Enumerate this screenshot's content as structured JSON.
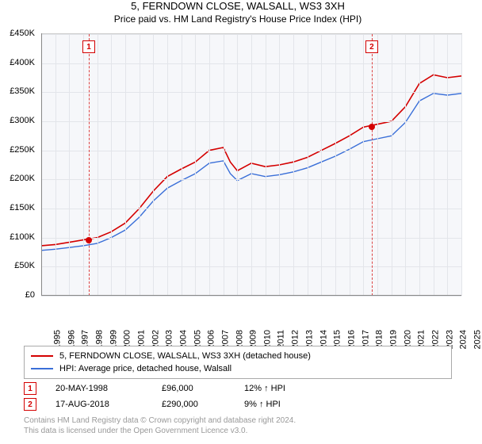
{
  "title": "5, FERNDOWN CLOSE, WALSALL, WS3 3XH",
  "subtitle": "Price paid vs. HM Land Registry's House Price Index (HPI)",
  "chart": {
    "type": "line",
    "background_color": "#f6f7fa",
    "grid_color": "#e3e5ea",
    "axis_color": "#888888",
    "xlim": [
      1995,
      2025
    ],
    "ylim": [
      0,
      450000
    ],
    "ytick_step": 50000,
    "yticks": [
      0,
      50000,
      100000,
      150000,
      200000,
      250000,
      300000,
      350000,
      400000,
      450000
    ],
    "ytick_labels": [
      "£0",
      "£50K",
      "£100K",
      "£150K",
      "£200K",
      "£250K",
      "£300K",
      "£350K",
      "£400K",
      "£450K"
    ],
    "ytick_fontsize": 11,
    "xticks": [
      1995,
      1996,
      1997,
      1998,
      1999,
      2000,
      2001,
      2002,
      2003,
      2004,
      2005,
      2006,
      2007,
      2008,
      2009,
      2010,
      2011,
      2012,
      2013,
      2014,
      2015,
      2016,
      2017,
      2018,
      2019,
      2020,
      2021,
      2022,
      2023,
      2024,
      2025
    ],
    "xtick_fontsize": 11,
    "series": [
      {
        "name": "5, FERNDOWN CLOSE, WALSALL, WS3 3XH (detached house)",
        "color": "#d40000",
        "line_width": 1.6,
        "x": [
          1995,
          1996,
          1997,
          1998,
          1999,
          2000,
          2001,
          2002,
          2003,
          2004,
          2005,
          2006,
          2007,
          2008,
          2008.5,
          2009,
          2010,
          2011,
          2012,
          2013,
          2014,
          2015,
          2016,
          2017,
          2018,
          2019,
          2020,
          2021,
          2022,
          2023,
          2024,
          2025
        ],
        "y": [
          86000,
          88000,
          92000,
          96000,
          100000,
          110000,
          125000,
          150000,
          180000,
          205000,
          218000,
          230000,
          250000,
          255000,
          230000,
          215000,
          228000,
          222000,
          225000,
          230000,
          238000,
          250000,
          262000,
          275000,
          290000,
          295000,
          300000,
          325000,
          365000,
          380000,
          375000,
          378000
        ]
      },
      {
        "name": "HPI: Average price, detached house, Walsall",
        "color": "#3a6fd8",
        "line_width": 1.4,
        "x": [
          1995,
          1996,
          1997,
          1998,
          1999,
          2000,
          2001,
          2002,
          2003,
          2004,
          2005,
          2006,
          2007,
          2008,
          2008.5,
          2009,
          2010,
          2011,
          2012,
          2013,
          2014,
          2015,
          2016,
          2017,
          2018,
          2019,
          2020,
          2021,
          2022,
          2023,
          2024,
          2025
        ],
        "y": [
          78000,
          80000,
          83000,
          86000,
          90000,
          100000,
          113000,
          135000,
          163000,
          185000,
          198000,
          210000,
          228000,
          232000,
          210000,
          198000,
          210000,
          205000,
          208000,
          213000,
          220000,
          230000,
          240000,
          252000,
          265000,
          270000,
          275000,
          298000,
          335000,
          348000,
          345000,
          348000
        ]
      }
    ],
    "markers": [
      {
        "label": "1",
        "x": 1998.4,
        "y": 96000
      },
      {
        "label": "2",
        "x": 2018.6,
        "y": 290000
      }
    ]
  },
  "legend": {
    "items": [
      {
        "color": "#d40000",
        "label": "5, FERNDOWN CLOSE, WALSALL, WS3 3XH (detached house)"
      },
      {
        "color": "#3a6fd8",
        "label": "HPI: Average price, detached house, Walsall"
      }
    ]
  },
  "events": [
    {
      "label": "1",
      "date": "20-MAY-1998",
      "price": "£96,000",
      "delta": "12% ↑ HPI"
    },
    {
      "label": "2",
      "date": "17-AUG-2018",
      "price": "£290,000",
      "delta": "9% ↑ HPI"
    }
  ],
  "footer_line1": "Contains HM Land Registry data © Crown copyright and database right 2024.",
  "footer_line2": "This data is licensed under the Open Government Licence v3.0."
}
